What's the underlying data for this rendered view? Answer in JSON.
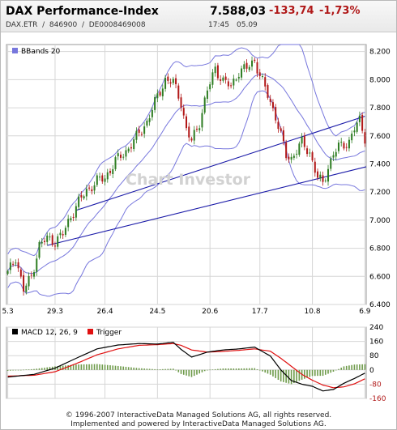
{
  "header": {
    "instrument": "DAX Performance-Index",
    "price": "7.588,03",
    "change": "-133,74",
    "change_pct": "-1,73%",
    "exchange": "DAX.ETR",
    "wkn": "846900",
    "isin": "DE0008469008",
    "time": "17:45",
    "date": "05.09"
  },
  "colors": {
    "bg": "#ffffff",
    "grid": "#d6d6d6",
    "bbands": "#7777dd",
    "trendline": "#1a1aa8",
    "candle_up": "#2e7d22",
    "candle_down": "#b21818",
    "macd": "#000000",
    "trigger": "#e01010",
    "histogram": "#6e9b4a",
    "negative": "#b01818"
  },
  "watermark": "Chart Investor",
  "chart_data": [
    {
      "type": "candlestick",
      "legend": [
        "BBands 20"
      ],
      "ylim": [
        6400,
        8250
      ],
      "yticks": [
        6400,
        6600,
        6800,
        7000,
        7200,
        7400,
        7600,
        7800,
        8000,
        8200
      ],
      "ytick_labels": [
        "6.400",
        "6.600",
        "6.800",
        "7.000",
        "7.200",
        "7.400",
        "7.600",
        "7.800",
        "8.000",
        "8.200"
      ],
      "xtick_labels": [
        "5.3",
        "29.3",
        "26.4",
        "24.5",
        "20.6",
        "17.7",
        "10.8",
        "6.9"
      ],
      "xtick_index": [
        0,
        18,
        37,
        57,
        77,
        96,
        116,
        136
      ],
      "n_sessions": 137,
      "close_anchors": [
        [
          0,
          6620
        ],
        [
          3,
          6740
        ],
        [
          6,
          6500
        ],
        [
          9,
          6600
        ],
        [
          12,
          6820
        ],
        [
          15,
          6870
        ],
        [
          18,
          6850
        ],
        [
          21,
          6900
        ],
        [
          24,
          7030
        ],
        [
          27,
          7130
        ],
        [
          30,
          7210
        ],
        [
          34,
          7280
        ],
        [
          37,
          7300
        ],
        [
          41,
          7420
        ],
        [
          45,
          7490
        ],
        [
          49,
          7590
        ],
        [
          53,
          7700
        ],
        [
          57,
          7880
        ],
        [
          60,
          8000
        ],
        [
          63,
          7980
        ],
        [
          66,
          7840
        ],
        [
          68,
          7640
        ],
        [
          70,
          7560
        ],
        [
          73,
          7700
        ],
        [
          76,
          7920
        ],
        [
          79,
          8080
        ],
        [
          82,
          7990
        ],
        [
          85,
          7950
        ],
        [
          88,
          8060
        ],
        [
          91,
          8080
        ],
        [
          94,
          8140
        ],
        [
          96,
          8030
        ],
        [
          99,
          7890
        ],
        [
          102,
          7740
        ],
        [
          104,
          7600
        ],
        [
          106,
          7460
        ],
        [
          108,
          7440
        ],
        [
          110,
          7500
        ],
        [
          112,
          7550
        ],
        [
          115,
          7480
        ],
        [
          118,
          7300
        ],
        [
          120,
          7260
        ],
        [
          122,
          7380
        ],
        [
          124,
          7470
        ],
        [
          126,
          7520
        ],
        [
          128,
          7540
        ],
        [
          130,
          7560
        ],
        [
          132,
          7650
        ],
        [
          134,
          7710
        ],
        [
          136,
          7590
        ]
      ],
      "trendlines": [
        {
          "from": [
            15,
            6820
          ],
          "to": [
            137,
            7380
          ]
        },
        {
          "from": [
            26,
            7070
          ],
          "to": [
            136,
            7740
          ]
        }
      ]
    },
    {
      "type": "line",
      "legend": [
        "MACD 12, 26, 9",
        "Trigger"
      ],
      "ylim": [
        -160,
        240
      ],
      "yticks": [
        -160,
        -80,
        0,
        80,
        160,
        240
      ],
      "ytick_labels": [
        "-160",
        "-80",
        "0",
        "80",
        "160",
        "240"
      ],
      "series": [
        {
          "name": "MACD 12, 26, 9",
          "points": [
            [
              0,
              -40
            ],
            [
              10,
              -25
            ],
            [
              18,
              10
            ],
            [
              26,
              65
            ],
            [
              34,
              118
            ],
            [
              42,
              140
            ],
            [
              50,
              148
            ],
            [
              57,
              145
            ],
            [
              63,
              155
            ],
            [
              66,
              115
            ],
            [
              70,
              72
            ],
            [
              76,
              100
            ],
            [
              82,
              112
            ],
            [
              88,
              118
            ],
            [
              94,
              128
            ],
            [
              100,
              78
            ],
            [
              104,
              0
            ],
            [
              108,
              -60
            ],
            [
              112,
              -80
            ],
            [
              116,
              -92
            ],
            [
              120,
              -118
            ],
            [
              124,
              -110
            ],
            [
              128,
              -75
            ],
            [
              132,
              -48
            ],
            [
              136,
              -18
            ]
          ]
        },
        {
          "name": "Trigger",
          "points": [
            [
              0,
              -35
            ],
            [
              10,
              -30
            ],
            [
              18,
              -10
            ],
            [
              26,
              35
            ],
            [
              34,
              85
            ],
            [
              42,
              118
            ],
            [
              50,
              138
            ],
            [
              57,
              142
            ],
            [
              63,
              148
            ],
            [
              66,
              138
            ],
            [
              70,
              112
            ],
            [
              76,
              100
            ],
            [
              82,
              104
            ],
            [
              88,
              110
            ],
            [
              94,
              118
            ],
            [
              100,
              105
            ],
            [
              104,
              65
            ],
            [
              108,
              20
            ],
            [
              112,
              -25
            ],
            [
              116,
              -58
            ],
            [
              120,
              -85
            ],
            [
              124,
              -100
            ],
            [
              128,
              -95
            ],
            [
              132,
              -78
            ],
            [
              136,
              -50
            ]
          ]
        }
      ]
    }
  ],
  "footer": {
    "line1": "© 1996-2007 InteractiveData Managed Solutions AG, all rights reserved.",
    "line2": "Implemented and powered by InteractiveData Managed Solutions AG."
  }
}
